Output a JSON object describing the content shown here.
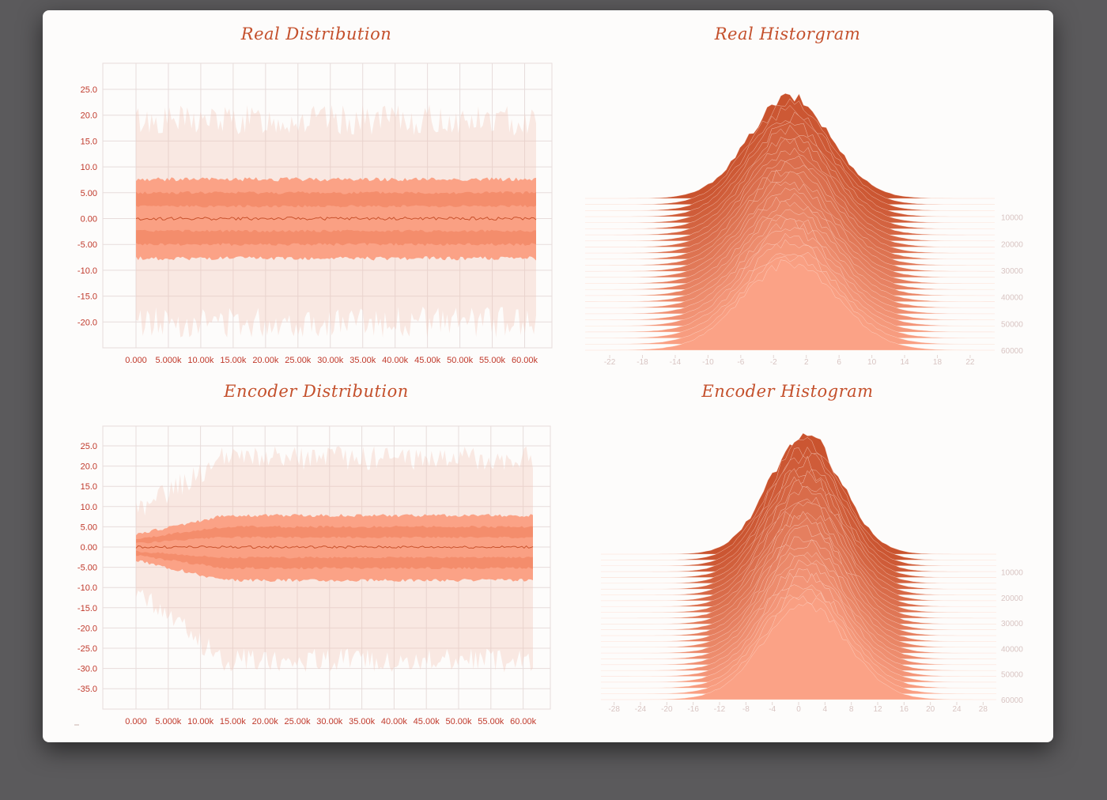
{
  "colors": {
    "accent": "#c4502c",
    "dark": "#c9532e",
    "mid": "#f48d6c",
    "light": "#fba286",
    "outer": "#f0c2b5",
    "grid": "#e7dcdb",
    "axis_text": "#c0392b",
    "hist_axis_text": "#d8c4c2"
  },
  "chart_data": [
    {
      "type": "area",
      "title": "Real Distribution",
      "xlabel": "",
      "ylabel": "",
      "x_ticks": [
        "0.000",
        "5.000k",
        "10.00k",
        "15.00k",
        "20.00k",
        "25.00k",
        "30.00k",
        "35.00k",
        "40.00k",
        "45.00k",
        "50.00k",
        "55.00k",
        "60.00k"
      ],
      "y_ticks": [
        "25.0",
        "20.0",
        "15.0",
        "10.0",
        "5.00",
        "0.00",
        "-5.00",
        "-10.0",
        "-15.0",
        "-20.0"
      ],
      "xlim": [
        0,
        62500
      ],
      "ylim": [
        -25,
        30
      ],
      "grid": true,
      "bands": {
        "outer": [
          -20,
          19
        ],
        "p7": [
          -7.7,
          7.6
        ],
        "p16": [
          -5.0,
          5.0
        ],
        "p31": [
          -2.4,
          2.4
        ],
        "median": 0.0
      }
    },
    {
      "type": "area",
      "title": "Real Historgram",
      "xlabel": "",
      "ylabel": "",
      "x_ticks": [
        "-22",
        "-18",
        "-14",
        "-10",
        "-6",
        "-2",
        "2",
        "6",
        "10",
        "14",
        "18",
        "22"
      ],
      "y_ticks": [
        "10000",
        "20000",
        "30000",
        "40000",
        "50000",
        "60000"
      ],
      "xlim": [
        -25,
        25
      ],
      "ylim": [
        0,
        62500
      ],
      "peak_x": 0,
      "spread": 5
    },
    {
      "type": "area",
      "title": "Encoder Distribution",
      "xlabel": "",
      "ylabel": "",
      "x_ticks": [
        "0.000",
        "5.000k",
        "10.00k",
        "15.00k",
        "20.00k",
        "25.00k",
        "30.00k",
        "35.00k",
        "40.00k",
        "45.00k",
        "50.00k",
        "55.00k",
        "60.00k"
      ],
      "y_ticks": [
        "25.0",
        "20.0",
        "15.0",
        "10.0",
        "5.00",
        "0.00",
        "-5.00",
        "-10.0",
        "-15.0",
        "-20.0",
        "-25.0",
        "-30.0",
        "-35.0"
      ],
      "xlim": [
        0,
        62500
      ],
      "ylim": [
        -40,
        30
      ],
      "grid": true,
      "bands": {
        "outer": [
          -28,
          22
        ],
        "p7": [
          -8.2,
          7.8
        ],
        "p16": [
          -5.2,
          5.0
        ],
        "p31": [
          -2.6,
          2.4
        ],
        "median": 0.0
      }
    },
    {
      "type": "area",
      "title": "Encoder Histogram",
      "xlabel": "",
      "ylabel": "",
      "x_ticks": [
        "-28",
        "-24",
        "-20",
        "-16",
        "-12",
        "-8",
        "-4",
        "0",
        "4",
        "8",
        "12",
        "16",
        "20",
        "24",
        "28"
      ],
      "y_ticks": [
        "10000",
        "20000",
        "30000",
        "40000",
        "50000",
        "60000"
      ],
      "xlim": [
        -30,
        30
      ],
      "ylim": [
        0,
        62500
      ],
      "peak_x": 1,
      "spread": 5.5
    }
  ]
}
